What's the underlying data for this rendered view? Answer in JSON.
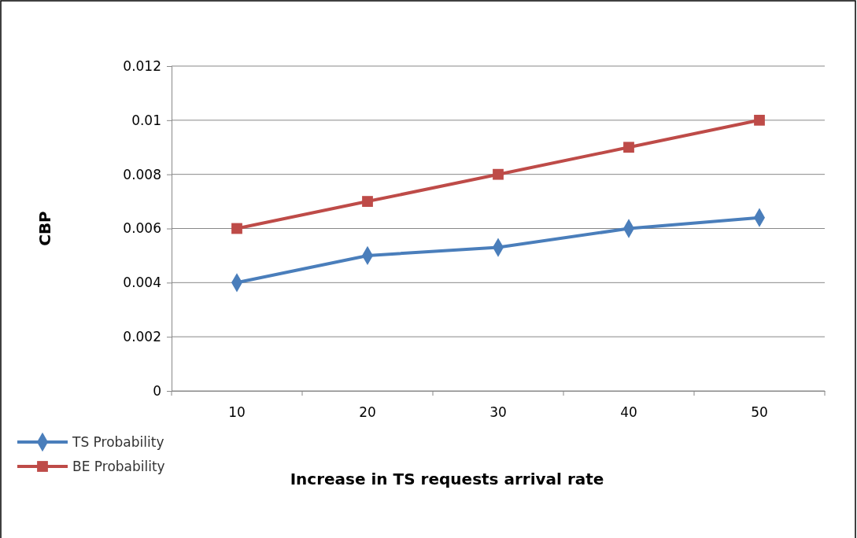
{
  "chart_data": {
    "type": "line",
    "xlabel": "Increase in TS requests arrival rate",
    "ylabel": "CBP",
    "categories": [
      "10",
      "20",
      "30",
      "40",
      "50"
    ],
    "series": [
      {
        "name": "TS Probability",
        "color": "#4a7ebb",
        "marker": "diamond",
        "values": [
          0.004,
          0.005,
          0.0053,
          0.006,
          0.0064
        ]
      },
      {
        "name": "BE Probability",
        "color": "#be4b48",
        "marker": "square",
        "values": [
          0.006,
          0.007,
          0.008,
          0.009,
          0.01
        ]
      }
    ],
    "ylim": [
      0,
      0.012
    ],
    "yticks": [
      0,
      0.002,
      0.004,
      0.006,
      0.008,
      0.01,
      0.012
    ],
    "grid": "y",
    "legend": "bottom left",
    "line_style": "solid"
  }
}
